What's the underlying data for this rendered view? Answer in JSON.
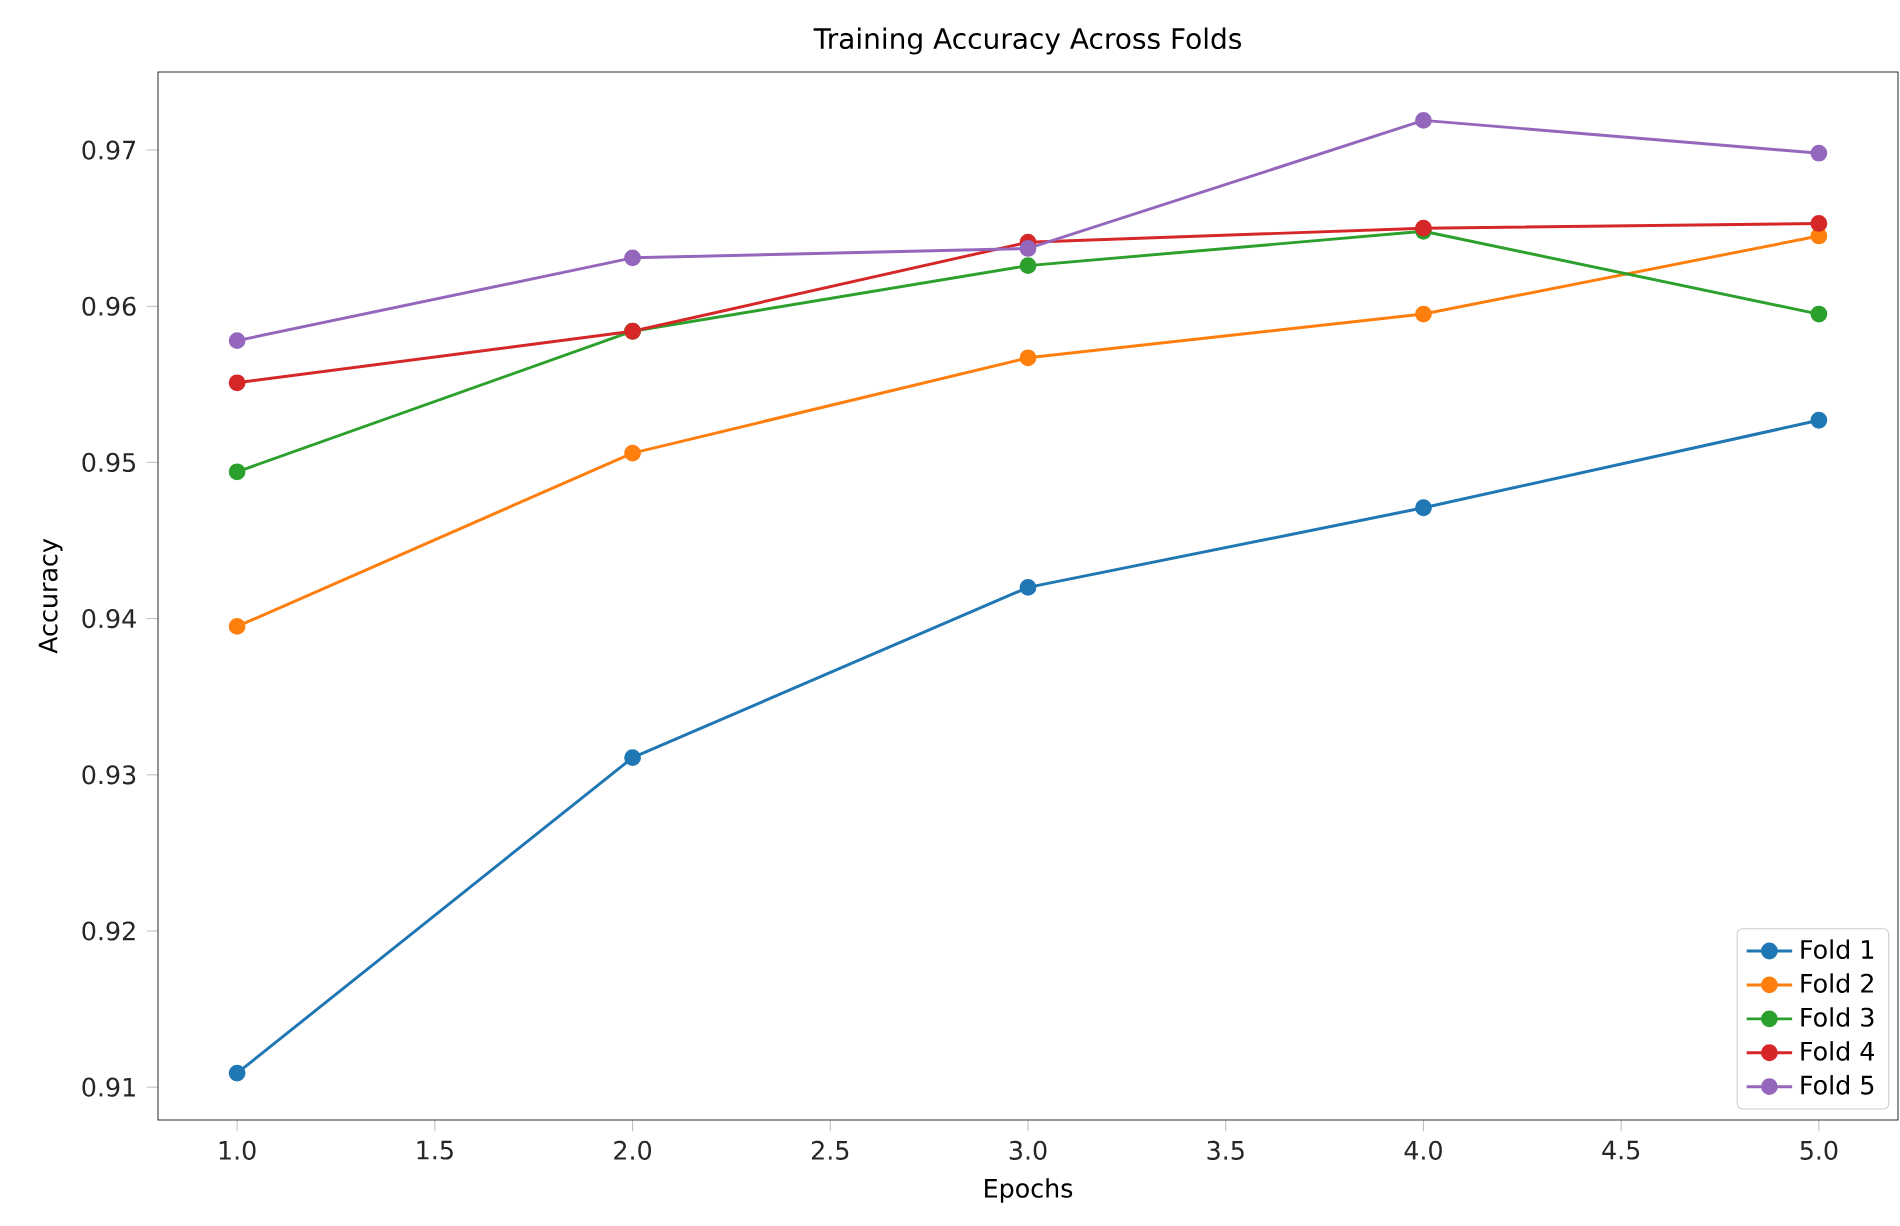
{
  "chart_data": {
    "type": "line",
    "title": "Training Accuracy Across Folds",
    "xlabel": "Epochs",
    "ylabel": "Accuracy",
    "x": [
      1,
      2,
      3,
      4,
      5
    ],
    "series": [
      {
        "name": "Fold 1",
        "color": "#1f77b4",
        "values": [
          0.9109,
          0.9311,
          0.942,
          0.9471,
          0.9527
        ]
      },
      {
        "name": "Fold 2",
        "color": "#ff7f0e",
        "values": [
          0.9395,
          0.9506,
          0.9567,
          0.9595,
          0.9645
        ]
      },
      {
        "name": "Fold 3",
        "color": "#2ca02c",
        "values": [
          0.9494,
          0.9584,
          0.9626,
          0.9648,
          0.9595
        ]
      },
      {
        "name": "Fold 4",
        "color": "#d62728",
        "values": [
          0.9551,
          0.9584,
          0.9641,
          0.965,
          0.9653
        ]
      },
      {
        "name": "Fold 5",
        "color": "#9467bd",
        "values": [
          0.9578,
          0.9631,
          0.9637,
          0.9719,
          0.9698
        ]
      }
    ],
    "xlim": [
      0.8,
      5.2
    ],
    "xticks": [
      {
        "value": 1,
        "label": "1.0"
      },
      {
        "value": 1.5,
        "label": "1.5"
      },
      {
        "value": 2,
        "label": "2.0"
      },
      {
        "value": 2.5,
        "label": "2.5"
      },
      {
        "value": 3,
        "label": "3.0"
      },
      {
        "value": 3.5,
        "label": "3.5"
      },
      {
        "value": 4,
        "label": "4.0"
      },
      {
        "value": 4.5,
        "label": "4.5"
      },
      {
        "value": 5,
        "label": "5.0"
      }
    ],
    "ylim": [
      0.9079,
      0.975
    ],
    "yticks": [
      0.91,
      0.92,
      0.93,
      0.94,
      0.95,
      0.96,
      0.97
    ],
    "grid": false,
    "legend": "bottom right",
    "marker": "circle",
    "line_style": "solid"
  }
}
